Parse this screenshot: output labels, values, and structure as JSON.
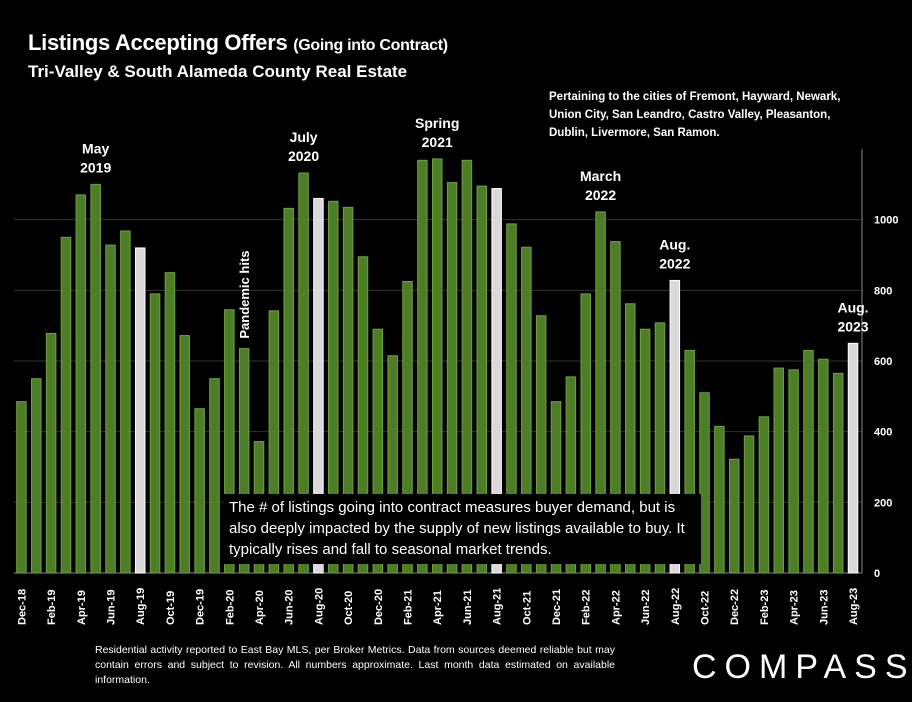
{
  "header": {
    "title_main": "Listings Accepting Offers",
    "title_paren": "(Going into Contract)",
    "subtitle": "Tri-Valley & South Alameda County Real Estate"
  },
  "note": "Pertaining to the cities of Fremont, Hayward, Newark, Union City, San Leandro, Castro Valley, Pleasanton, Dublin, Livermore, San Ramon.",
  "callout": "The # of listings going into contract measures buyer demand, but is also deeply impacted by the supply of new listings available to buy. It typically rises and fall to seasonal market trends.",
  "footer": "Residential activity reported to East Bay MLS, per Broker Metrics. Data from sources deemed reliable but may contain errors and subject to revision.  All numbers approximate. Last month data estimated on available information.",
  "logo": "COMPASS",
  "colors": {
    "bar": "#4e7d27",
    "bar_edge": "#6fa33a",
    "highlight": "#d9d9d9",
    "grid": "#333333"
  },
  "chart_data": {
    "type": "bar",
    "ylim": [
      0,
      1200
    ],
    "yticks": [
      0,
      200,
      400,
      600,
      800,
      1000
    ],
    "categories": [
      "Dec-18",
      "Jan-19",
      "Feb-19",
      "Mar-19",
      "Apr-19",
      "May-19",
      "Jun-19",
      "Jul-19",
      "Aug-19",
      "Sep-19",
      "Oct-19",
      "Nov-19",
      "Dec-19",
      "Jan-20",
      "Feb-20",
      "Mar-20",
      "Apr-20",
      "May-20",
      "Jun-20",
      "Jul-20",
      "Aug-20",
      "Sep-20",
      "Oct-20",
      "Nov-20",
      "Dec-20",
      "Jan-21",
      "Feb-21",
      "Mar-21",
      "Apr-21",
      "May-21",
      "Jun-21",
      "Jul-21",
      "Aug-21",
      "Sep-21",
      "Oct-21",
      "Nov-21",
      "Dec-21",
      "Jan-22",
      "Feb-22",
      "Mar-22",
      "Apr-22",
      "May-22",
      "Jun-22",
      "Jul-22",
      "Aug-22",
      "Sep-22",
      "Oct-22",
      "Nov-22",
      "Dec-22",
      "Jan-23",
      "Feb-23",
      "Mar-23",
      "Apr-23",
      "May-23",
      "Jun-23",
      "Jul-23",
      "Aug-23"
    ],
    "values": [
      485,
      550,
      678,
      950,
      1070,
      1100,
      928,
      968,
      920,
      790,
      850,
      672,
      465,
      550,
      745,
      635,
      372,
      742,
      1032,
      1132,
      1060,
      1052,
      1035,
      895,
      690,
      615,
      825,
      1168,
      1172,
      1105,
      1168,
      1095,
      1088,
      988,
      922,
      728,
      485,
      555,
      790,
      1022,
      938,
      762,
      690,
      708,
      828,
      630,
      510,
      415,
      322,
      388,
      442,
      580,
      575,
      630,
      605,
      565,
      650
    ],
    "highlighted": [
      "Aug-19",
      "Aug-20",
      "Aug-21",
      "Aug-22",
      "Aug-23"
    ],
    "tick_labels": [
      "Dec-18",
      "Feb-19",
      "Apr-19",
      "Jun-19",
      "Aug-19",
      "Oct-19",
      "Dec-19",
      "Feb-20",
      "Apr-20",
      "Jun-20",
      "Aug-20",
      "Oct-20",
      "Dec-20",
      "Feb-21",
      "Apr-21",
      "Jun-21",
      "Aug-21",
      "Oct-21",
      "Dec-21",
      "Feb-22",
      "Apr-22",
      "Jun-22",
      "Aug-22",
      "Oct-22",
      "Dec-22",
      "Feb-23",
      "Apr-23",
      "Jun-23",
      "Aug-23"
    ],
    "annotations": [
      {
        "category": "May-19",
        "lines": [
          "May",
          "2019"
        ]
      },
      {
        "category": "Jul-20",
        "lines": [
          "July",
          "2020"
        ]
      },
      {
        "category": "Apr-21",
        "lines": [
          "Spring",
          "2021"
        ]
      },
      {
        "category": "Mar-22",
        "lines": [
          "March",
          "2022"
        ]
      },
      {
        "category": "Aug-22",
        "lines": [
          "Aug.",
          "2022"
        ]
      },
      {
        "category": "Aug-23",
        "lines": [
          "Aug.",
          "2023"
        ]
      },
      {
        "category": "Mar-20",
        "lines": [
          "Pandemic hits"
        ],
        "vertical": true
      }
    ]
  }
}
